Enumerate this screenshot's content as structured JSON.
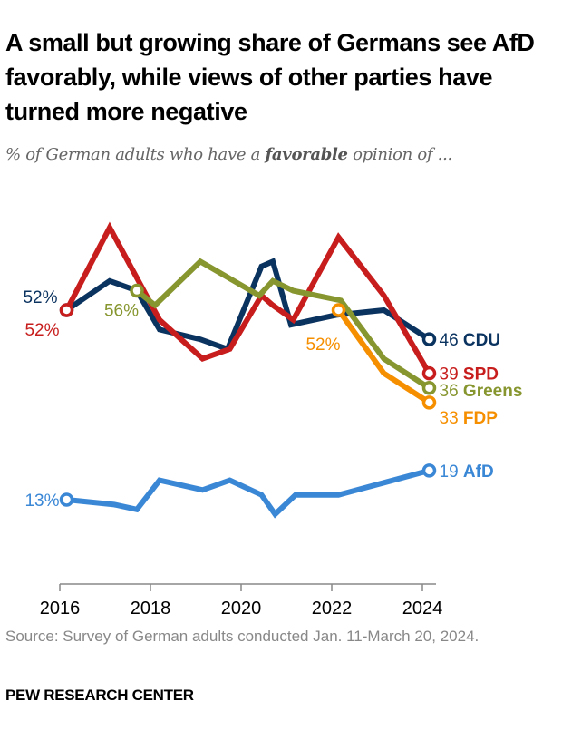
{
  "header": {
    "title": "A small but growing share of Germans see AfD favorably, while views of other parties have turned more negative",
    "subtitle_before": "% of German adults who have a ",
    "subtitle_bold": "favorable",
    "subtitle_after": " opinion of ..."
  },
  "footer": {
    "source": "Source: Survey of German adults conducted Jan. 11-March 20, 2024.",
    "organization": "PEW RESEARCH CENTER"
  },
  "chart_data": {
    "type": "line",
    "title": "A small but growing share of Germans see AfD favorably, while views of other parties have turned more negative",
    "subtitle": "% of German adults who have a favorable opinion of ...",
    "xlabel": "",
    "ylabel": "",
    "xlim": [
      2016,
      2024.5
    ],
    "ylim": [
      5,
      72
    ],
    "x_ticks": [
      2016,
      2018,
      2020,
      2022,
      2024
    ],
    "grid": false,
    "legend": "direct labels at line ends",
    "series": [
      {
        "name": "CDU",
        "color": "#0b3360",
        "start_label": "52%",
        "end_label": "46",
        "x": [
          2016.15,
          2017.1,
          2017.7,
          2018.2,
          2019.1,
          2019.7,
          2020.45,
          2020.7,
          2021.1,
          2022.1,
          2023.15,
          2024.15
        ],
        "y": [
          52,
          58,
          56,
          48,
          46,
          44,
          61,
          62,
          49,
          51,
          52,
          46
        ]
      },
      {
        "name": "SPD",
        "color": "#c71e1d",
        "start_label": "52%",
        "end_label": "39",
        "x": [
          2016.15,
          2017.1,
          2018.2,
          2019.15,
          2019.75,
          2020.45,
          2020.7,
          2021.15,
          2022.15,
          2023.15,
          2024.15
        ],
        "y": [
          52,
          69,
          50,
          42,
          44,
          55,
          53,
          50,
          67,
          55,
          39
        ]
      },
      {
        "name": "Greens",
        "color": "#87962f",
        "start_label": "56%",
        "end_label": "36",
        "x": [
          2017.7,
          2018.1,
          2019.1,
          2020.4,
          2020.7,
          2021.15,
          2022.2,
          2023.15,
          2024.15
        ],
        "y": [
          56,
          53,
          62,
          55,
          58,
          56,
          54,
          42,
          36
        ]
      },
      {
        "name": "FDP",
        "color": "#f68f00",
        "start_label": "52%",
        "end_label": "33",
        "x": [
          2022.15,
          2023.15,
          2024.15
        ],
        "y": [
          52,
          39,
          33
        ]
      },
      {
        "name": "AfD",
        "color": "#3a87d6",
        "start_label": "13%",
        "end_label": "19",
        "x": [
          2016.15,
          2017.2,
          2017.7,
          2018.2,
          2019.15,
          2019.75,
          2020.45,
          2020.75,
          2021.2,
          2022.15,
          2023.15,
          2024.15
        ],
        "y": [
          13,
          12,
          11,
          17,
          15,
          17,
          14,
          10,
          14,
          14,
          16.5,
          19
        ]
      }
    ]
  }
}
